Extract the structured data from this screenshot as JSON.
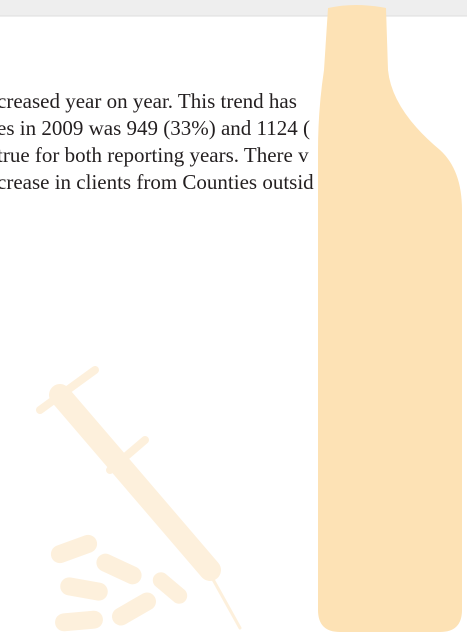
{
  "paragraph": {
    "lines": [
      "creased year on year. This trend has",
      "es in 2009 was 949 (33%) and 1124 (",
      "true for both reporting years.  There v",
      "crease in clients from Counties outsid"
    ]
  }
}
